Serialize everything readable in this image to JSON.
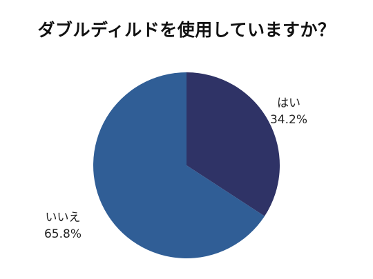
{
  "chart_data": {
    "type": "pie",
    "title": "ダブルディルドを使用していますか？",
    "slices": [
      {
        "label": "はい",
        "value": 34.2,
        "value_label": "34.2%",
        "color": "#2f3366"
      },
      {
        "label": "いいえ",
        "value": 65.8,
        "value_label": "65.8%",
        "color": "#305e96"
      }
    ],
    "start": "12 o'clock",
    "direction": "clockwise",
    "legend": "none"
  }
}
